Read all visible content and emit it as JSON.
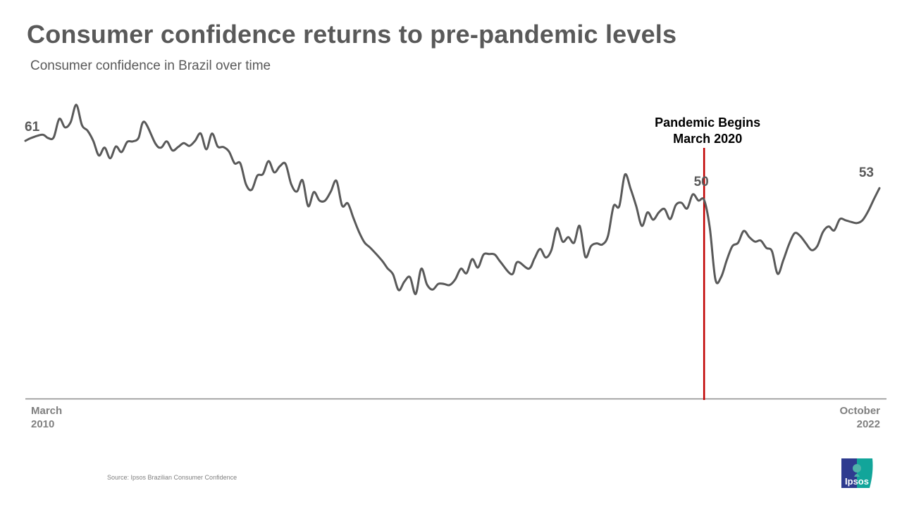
{
  "title": "Consumer confidence returns to pre-pandemic levels",
  "subtitle": "Consumer confidence in Brazil over time",
  "source": "Source: Ipsos Brazilian Consumer Confidence",
  "logo_text": "Ipsos",
  "chart_data": {
    "type": "line",
    "title": "Consumer confidence returns to pre-pandemic levels",
    "subtitle": "Consumer confidence in Brazil over time",
    "xlabel": "",
    "ylabel": "",
    "x_ticks": [
      {
        "date": "2010-03",
        "line1": "March",
        "line2": "2010"
      },
      {
        "date": "2022-10",
        "line1": "October",
        "line2": "2022"
      }
    ],
    "xlim": [
      "2010-03",
      "2022-10"
    ],
    "ylim": [
      15,
      70
    ],
    "grid": false,
    "line_color": "#595959",
    "series": [
      {
        "x": [
          "2010-03",
          "2010-04",
          "2010-06",
          "2010-07",
          "2010-08",
          "2010-09",
          "2010-10",
          "2010-11",
          "2010-12",
          "2011-01",
          "2011-02",
          "2011-03",
          "2011-04",
          "2011-05",
          "2011-06",
          "2011-07",
          "2011-08",
          "2011-09",
          "2011-10",
          "2011-11",
          "2011-12",
          "2012-02",
          "2012-03",
          "2012-04",
          "2012-05",
          "2012-06",
          "2012-07",
          "2012-08",
          "2012-09",
          "2012-10",
          "2012-11",
          "2012-12",
          "2013-01",
          "2013-02",
          "2013-03",
          "2013-04",
          "2013-05",
          "2013-06",
          "2013-07",
          "2013-08",
          "2013-09",
          "2013-10",
          "2013-11",
          "2013-12",
          "2014-01",
          "2014-02",
          "2014-03",
          "2014-04",
          "2014-05",
          "2014-06",
          "2014-07",
          "2014-08",
          "2014-09",
          "2014-10",
          "2014-11",
          "2014-12",
          "2015-01",
          "2015-02",
          "2015-03",
          "2015-04",
          "2015-06",
          "2015-07",
          "2015-08",
          "2015-09",
          "2015-10",
          "2015-11",
          "2015-12",
          "2016-01",
          "2016-02",
          "2016-03",
          "2016-04",
          "2016-05",
          "2016-06",
          "2016-07",
          "2016-08",
          "2016-09",
          "2016-10",
          "2016-11",
          "2016-12",
          "2017-01",
          "2017-02",
          "2017-03",
          "2017-05",
          "2017-06",
          "2017-08",
          "2017-09",
          "2017-10",
          "2017-11",
          "2017-12",
          "2018-01",
          "2018-02",
          "2018-03",
          "2018-04",
          "2018-05",
          "2018-06",
          "2018-07",
          "2018-08",
          "2018-09",
          "2018-10",
          "2018-11",
          "2018-12",
          "2019-01",
          "2019-02",
          "2019-03",
          "2019-04",
          "2019-05",
          "2019-06",
          "2019-07",
          "2019-08",
          "2019-09",
          "2019-10",
          "2019-11",
          "2019-12",
          "2020-01",
          "2020-02",
          "2020-03",
          "2020-04",
          "2020-05",
          "2020-06",
          "2020-07",
          "2020-08",
          "2020-09",
          "2020-10",
          "2020-11",
          "2020-12",
          "2021-01",
          "2021-02",
          "2021-03",
          "2021-04",
          "2021-05",
          "2021-06",
          "2021-07",
          "2021-08",
          "2021-09",
          "2021-10",
          "2021-11",
          "2021-12",
          "2022-01",
          "2022-02",
          "2022-03",
          "2022-04",
          "2022-05",
          "2022-06",
          "2022-07",
          "2022-08",
          "2022-09",
          "2022-10"
        ],
        "y": [
          61.0,
          61.5,
          62.1,
          61.5,
          61.6,
          64.9,
          63.4,
          64.3,
          67.4,
          63.8,
          62.8,
          61.0,
          58.4,
          59.8,
          57.9,
          60.0,
          59.0,
          60.8,
          60.9,
          61.5,
          64.4,
          60.5,
          59.8,
          60.9,
          59.3,
          59.9,
          60.6,
          60.1,
          61.0,
          62.3,
          59.5,
          62.3,
          60.0,
          59.9,
          59.1,
          57.0,
          57.0,
          53.3,
          52.3,
          54.8,
          55.1,
          57.4,
          55.4,
          56.5,
          56.9,
          53.3,
          52.0,
          54.0,
          49.4,
          51.9,
          50.4,
          50.4,
          52.0,
          53.9,
          49.5,
          49.9,
          47.3,
          44.8,
          42.9,
          42.0,
          39.8,
          38.4,
          37.3,
          34.5,
          36.0,
          36.8,
          33.8,
          38.3,
          35.5,
          34.6,
          35.6,
          35.6,
          35.4,
          36.4,
          38.3,
          37.5,
          40.0,
          38.5,
          40.8,
          40.9,
          40.8,
          39.5,
          37.3,
          39.5,
          38.3,
          40.1,
          41.8,
          40.3,
          41.6,
          45.5,
          43.1,
          43.9,
          42.9,
          45.9,
          40.4,
          42.3,
          42.8,
          42.6,
          44.1,
          49.4,
          49.4,
          55.0,
          52.5,
          49.4,
          45.9,
          48.3,
          47.0,
          48.3,
          48.9,
          47.1,
          49.6,
          50.0,
          49.0,
          51.5,
          50.4,
          50.5,
          45.6,
          36.4,
          36.8,
          39.8,
          42.3,
          42.9,
          45.0,
          43.9,
          43.1,
          43.3,
          42.0,
          41.4,
          37.4,
          39.8,
          42.6,
          44.6,
          44.1,
          42.8,
          41.6,
          42.3,
          44.8,
          45.8,
          45.1,
          47.1,
          46.9,
          46.6,
          46.4,
          46.9,
          48.5,
          50.6,
          52.6
        ]
      }
    ],
    "data_labels": [
      {
        "date": "2010-03",
        "text": "61"
      },
      {
        "date": "2020-02",
        "text": "50"
      },
      {
        "date": "2022-10",
        "text": "53"
      }
    ],
    "annotation": {
      "date": "2020-03",
      "line1": "Pandemic Begins",
      "line2": "March 2020",
      "color": "#C00000"
    }
  }
}
